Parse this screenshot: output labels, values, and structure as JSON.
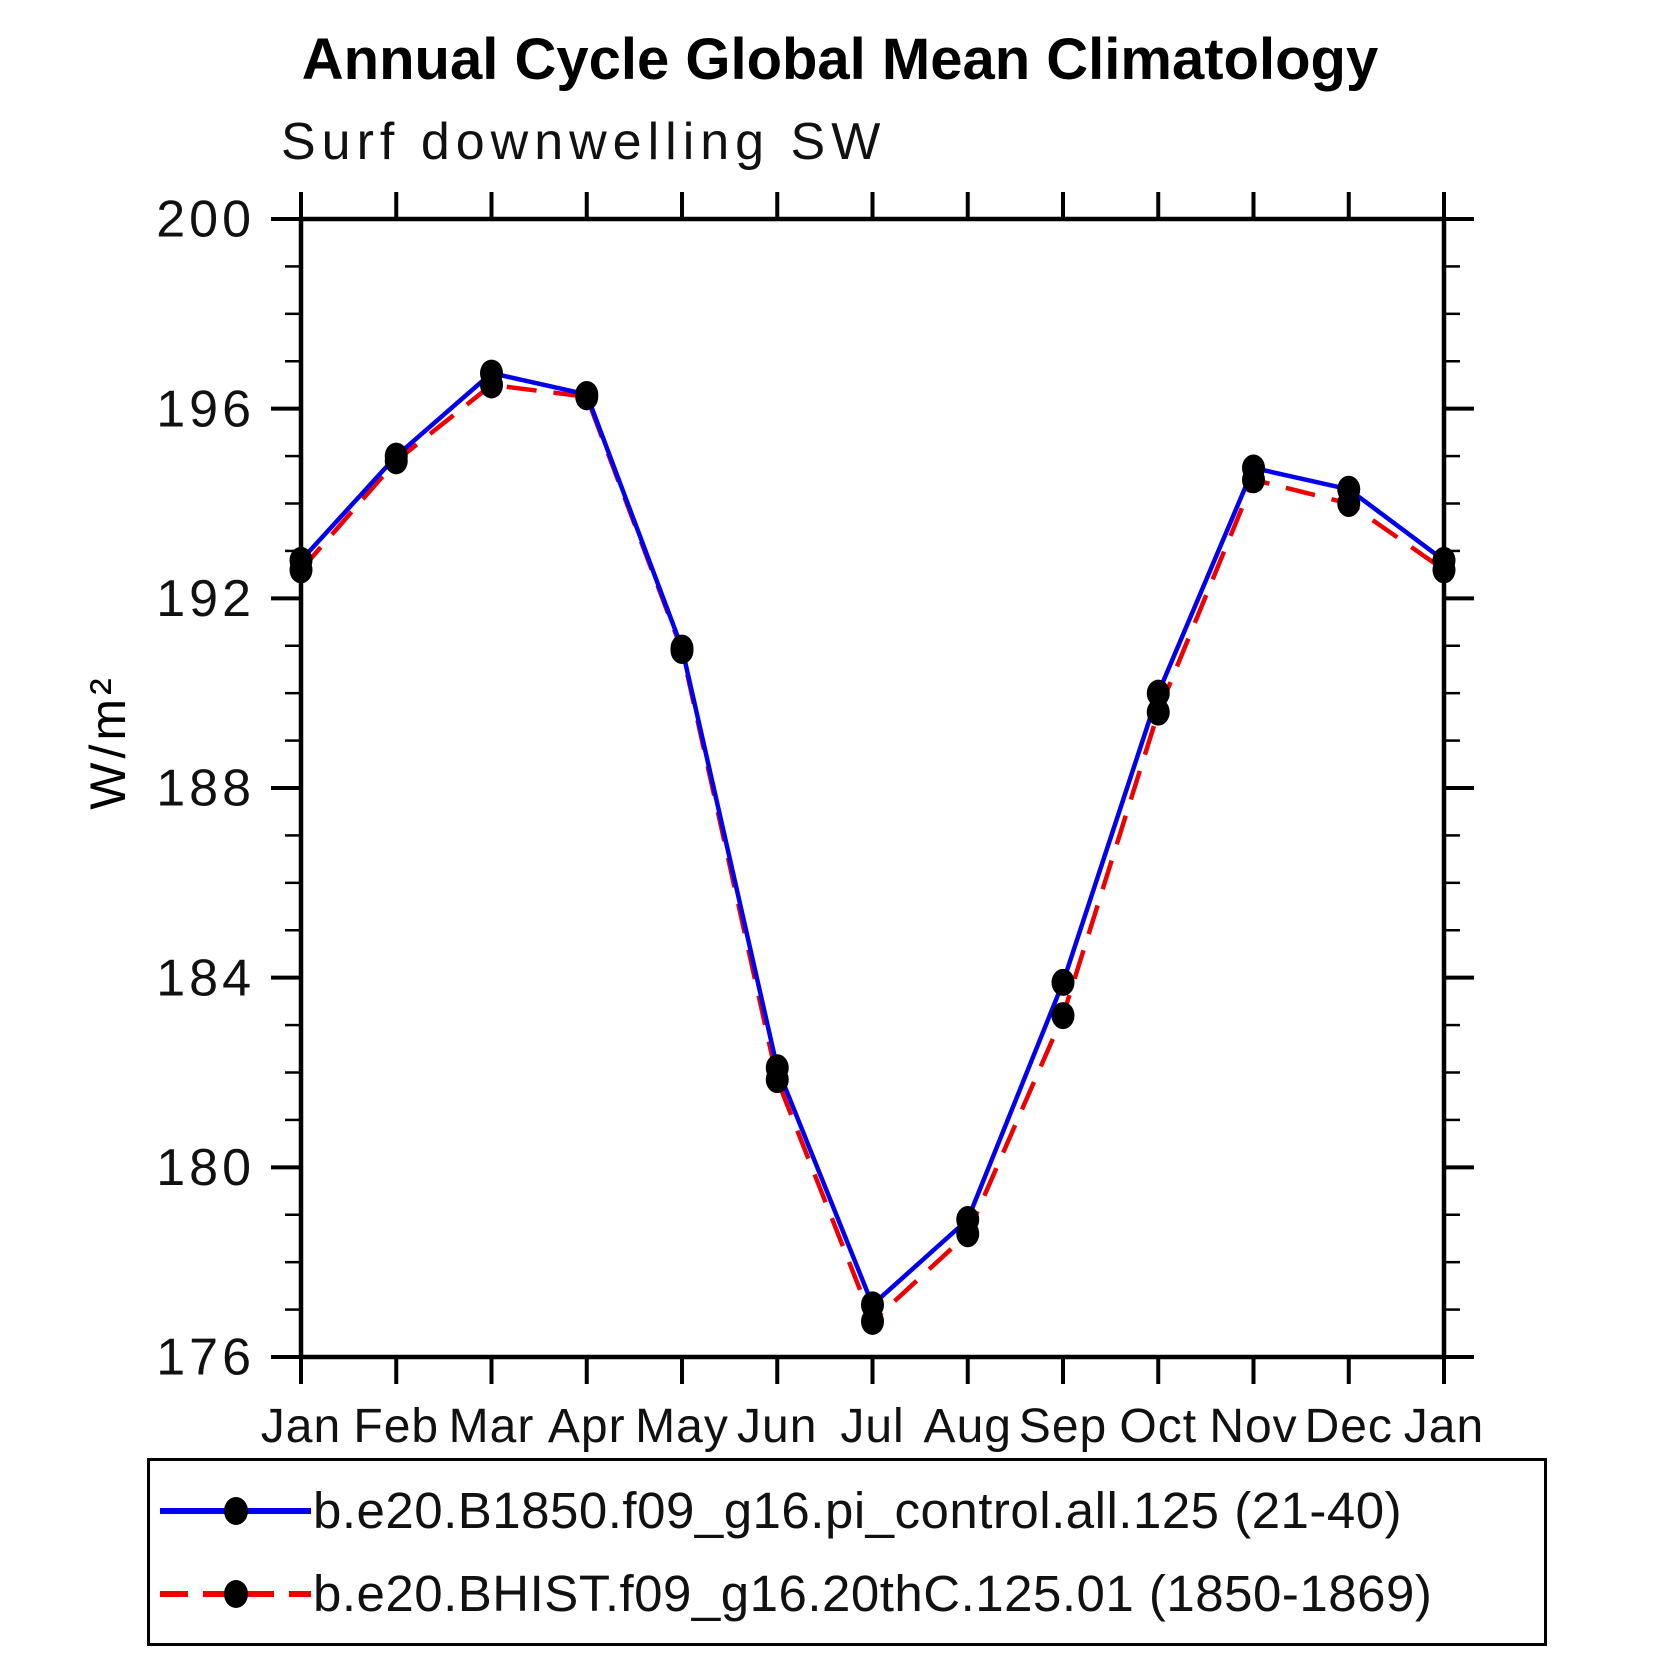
{
  "header": {
    "title": "Annual Cycle Global Mean Climatology",
    "subtitle": "Surf downwelling SW"
  },
  "chart_data": {
    "type": "line",
    "categories": [
      "Jan",
      "Feb",
      "Mar",
      "Apr",
      "May",
      "Jun",
      "Jul",
      "Aug",
      "Sep",
      "Oct",
      "Nov",
      "Dec",
      "Jan"
    ],
    "series": [
      {
        "name": "b.e20.B1850.f09_g16.pi_control.all.125 (21-40)",
        "color": "#0000ee",
        "style": "solid",
        "marker": "filled-circle",
        "marker_color": "#000000",
        "values": [
          192.8,
          195.0,
          196.75,
          196.3,
          190.95,
          182.1,
          177.1,
          178.9,
          183.9,
          190.0,
          194.75,
          194.3,
          192.8
        ]
      },
      {
        "name": "b.e20.BHIST.f09_g16.20thC.125.01 (1850-1869)",
        "color": "#ee0000",
        "style": "dashed",
        "marker": "filled-circle",
        "marker_color": "#000000",
        "values": [
          192.6,
          194.9,
          196.5,
          196.25,
          190.9,
          181.85,
          176.75,
          178.6,
          183.2,
          189.6,
          194.5,
          194.0,
          192.6
        ]
      }
    ],
    "title": "Annual Cycle Global Mean Climatology",
    "subtitle": "Surf downwelling SW",
    "xlabel": "",
    "ylabel": "W/m²",
    "ylim": [
      176,
      200
    ],
    "y_major_step": 4,
    "y_minor_step": 1,
    "y_tick_labels": [
      "176",
      "180",
      "184",
      "188",
      "192",
      "196",
      "200"
    ],
    "grid": false,
    "legend_position": "bottom",
    "axis_color": "#000000"
  }
}
